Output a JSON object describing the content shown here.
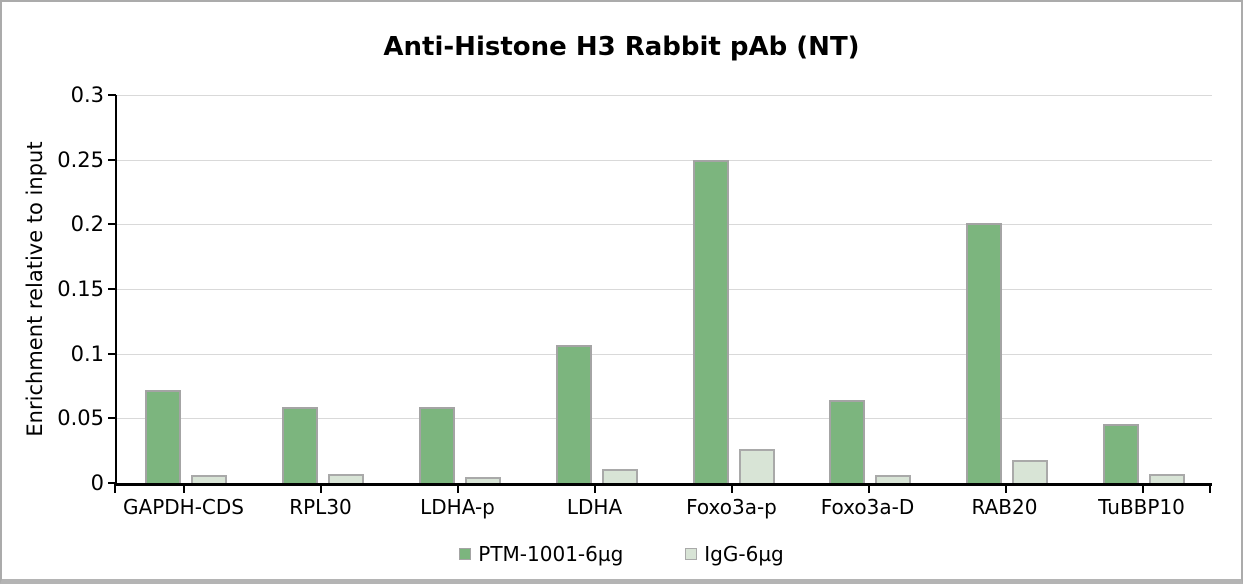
{
  "chart_data": {
    "type": "bar",
    "title": "Anti-Histone H3 Rabbit pAb (NT)",
    "ylabel": "Enrichment relative to input",
    "xlabel": "",
    "categories": [
      "GAPDH-CDS",
      "RPL30",
      "LDHA-p",
      "LDHA",
      "Foxo3a-p",
      "Foxo3a-D",
      "RAB20",
      "TuBBP10"
    ],
    "series": [
      {
        "name": "PTM-1001-6µg",
        "fill_color": "#7cb57e",
        "border_color": "#a4a4a4",
        "values": [
          0.072,
          0.059,
          0.059,
          0.107,
          0.25,
          0.064,
          0.201,
          0.046
        ]
      },
      {
        "name": "IgG-6µg",
        "fill_color": "#d8e4d6",
        "border_color": "#a9a9a9",
        "values": [
          0.006,
          0.007,
          0.005,
          0.011,
          0.026,
          0.006,
          0.018,
          0.007
        ]
      }
    ],
    "ylim": [
      0,
      0.3
    ],
    "yticks": [
      0,
      0.05,
      0.1,
      0.15,
      0.2,
      0.25,
      0.3
    ],
    "ytick_labels": [
      "0",
      "0.05",
      "0.1",
      "0.15",
      "0.2",
      "0.25",
      "0.3"
    ],
    "grid": true,
    "gridline_color": "#d9d9d9",
    "axis_color": "#000000",
    "legend_position": "bottom"
  }
}
